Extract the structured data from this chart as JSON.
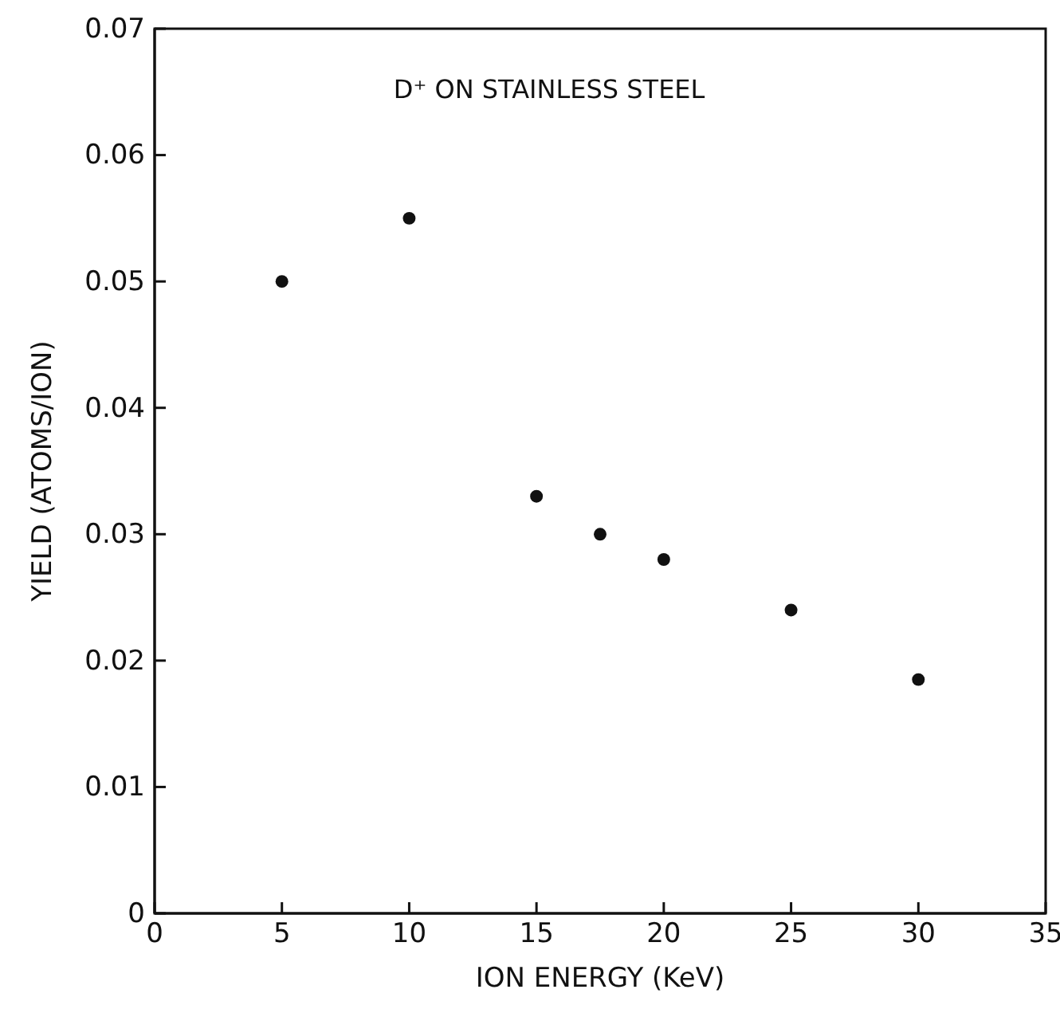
{
  "chart_data": {
    "type": "scatter",
    "xlabel": "ION ENERGY (KeV)",
    "ylabel": "YIELD (ATOMS/ION)",
    "annotations": [
      "D⁺ ON STAINLESS STEEL"
    ],
    "x": [
      5,
      10,
      15,
      17.5,
      20,
      25,
      30
    ],
    "values": [
      0.05,
      0.055,
      0.033,
      0.03,
      0.028,
      0.024,
      0.0185
    ],
    "color": "#111111",
    "marker": "circle",
    "grid": false,
    "xlim": [
      0,
      35
    ],
    "xticks": [
      0,
      5,
      10,
      15,
      20,
      25,
      30,
      35
    ],
    "ylim": [
      0,
      0.07
    ],
    "yticks": [
      0,
      0.01,
      0.02,
      0.03,
      0.04,
      0.05,
      0.06,
      0.07
    ]
  }
}
